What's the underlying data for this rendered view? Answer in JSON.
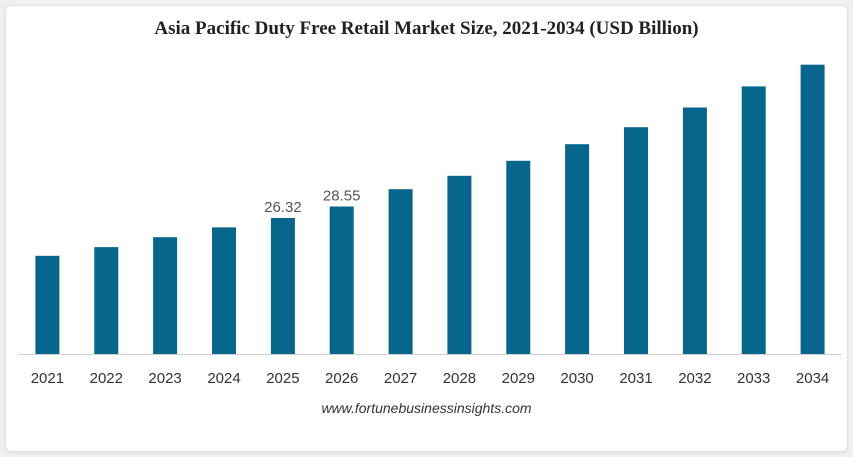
{
  "chart_data": {
    "type": "bar",
    "title": "Asia Pacific Duty Free Retail Market Size, 2021-2034 (USD Billion)",
    "categories": [
      "2021",
      "2022",
      "2023",
      "2024",
      "2025",
      "2026",
      "2027",
      "2028",
      "2029",
      "2030",
      "2031",
      "2032",
      "2033",
      "2034"
    ],
    "values": [
      19.0,
      20.7,
      22.6,
      24.5,
      26.32,
      28.55,
      31.9,
      34.5,
      37.4,
      40.6,
      43.9,
      47.7,
      51.8,
      56.0
    ],
    "data_labels": {
      "4": "26.32",
      "5": "28.55"
    },
    "series_color": "#06668c",
    "ylim": [
      0,
      60
    ],
    "grid": false,
    "legend": "none",
    "source": "www.fortunebusinessinsights.com"
  }
}
